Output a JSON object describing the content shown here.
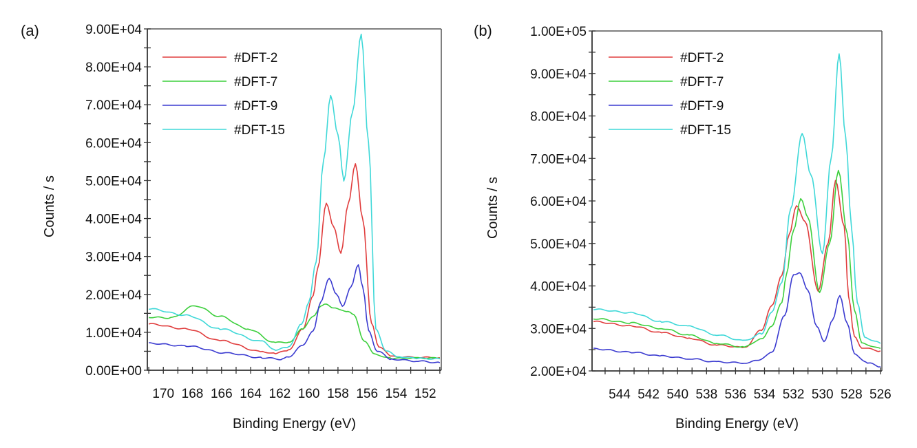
{
  "chart_data": [
    {
      "type": "line",
      "panel_label": "(a)",
      "xlabel": "Binding Energy (eV)",
      "ylabel": "Counts / s",
      "xlim": [
        171.1,
        150.9
      ],
      "x_reversed": true,
      "ylim": [
        0,
        90000
      ],
      "xticks": [
        170,
        168,
        166,
        164,
        162,
        160,
        158,
        156,
        154,
        152
      ],
      "xtick_labels": [
        "170",
        "168",
        "166",
        "164",
        "162",
        "160",
        "158",
        "156",
        "154",
        "152"
      ],
      "x_minor_step": 1,
      "yticks": [
        0,
        10000,
        20000,
        30000,
        40000,
        50000,
        60000,
        70000,
        80000,
        90000
      ],
      "ytick_labels": [
        "0.00E+00",
        "1.00E+04",
        "2.00E+04",
        "3.00E+04",
        "4.00E+04",
        "5.00E+04",
        "6.00E+04",
        "7.00E+04",
        "8.00E+04",
        "9.00E+04"
      ],
      "y_minor_step": 5000,
      "grid": false,
      "legend_position": "top-left",
      "series": [
        {
          "name": "#DFT-2",
          "color": "#e03c3c",
          "x": [
            171.0,
            168.4,
            166.1,
            163.2,
            162.3,
            161.4,
            160.4,
            159.7,
            159.4,
            158.8,
            158.3,
            157.8,
            157.3,
            156.8,
            156.3,
            155.7,
            155.2,
            154.3,
            152.5,
            151.0
          ],
          "y": [
            12200,
            10900,
            7800,
            4900,
            4400,
            5300,
            10900,
            19600,
            26900,
            43900,
            38000,
            30700,
            44000,
            54300,
            40000,
            12300,
            6300,
            3600,
            3400,
            3300
          ]
        },
        {
          "name": "#DFT-7",
          "color": "#3ccf3c",
          "x": [
            171.0,
            169.5,
            167.8,
            166.1,
            164.2,
            162.3,
            161.4,
            160.4,
            159.7,
            159.2,
            158.8,
            158.3,
            157.8,
            157.3,
            156.9,
            156.2,
            155.5,
            154.3,
            152.5,
            151.0
          ],
          "y": [
            14000,
            13800,
            17000,
            14200,
            10900,
            7300,
            7400,
            10900,
            14200,
            16900,
            17400,
            16500,
            15800,
            15600,
            14500,
            7800,
            4200,
            3100,
            3200,
            3200
          ]
        },
        {
          "name": "#DFT-9",
          "color": "#3a3ad0",
          "x": [
            171.0,
            168.4,
            165.6,
            163.2,
            161.8,
            161.4,
            160.4,
            159.7,
            159.2,
            158.6,
            158.1,
            157.7,
            157.1,
            156.6,
            156.3,
            155.9,
            155.3,
            154.3,
            152.5,
            151.0
          ],
          "y": [
            7100,
            6400,
            4500,
            3300,
            2900,
            3600,
            6500,
            10500,
            17800,
            24300,
            20000,
            16900,
            22000,
            27800,
            22000,
            10500,
            5000,
            2900,
            2400,
            2000
          ]
        },
        {
          "name": "#DFT-15",
          "color": "#3fd8d8",
          "x": [
            171.0,
            168.4,
            166.1,
            163.2,
            162.3,
            161.4,
            160.5,
            160.0,
            159.5,
            159.0,
            158.5,
            158.0,
            157.6,
            157.0,
            156.4,
            155.9,
            155.4,
            154.7,
            153.8,
            152.5,
            151.0
          ],
          "y": [
            16200,
            14500,
            10900,
            7600,
            5400,
            6000,
            12300,
            17800,
            28700,
            55000,
            72600,
            62000,
            50000,
            68000,
            88700,
            60000,
            11000,
            5000,
            3600,
            3100,
            3000
          ]
        }
      ]
    },
    {
      "type": "line",
      "panel_label": "(b)",
      "xlabel": "Binding Energy (eV)",
      "ylabel": "Counts / s",
      "xlim": [
        545.9,
        525.9
      ],
      "x_reversed": true,
      "ylim": [
        20000,
        100000
      ],
      "xticks": [
        544,
        542,
        540,
        538,
        536,
        534,
        532,
        530,
        528,
        526
      ],
      "xtick_labels": [
        "544",
        "542",
        "540",
        "538",
        "536",
        "534",
        "532",
        "530",
        "528",
        "526"
      ],
      "x_minor_step": 1,
      "yticks": [
        20000,
        30000,
        40000,
        50000,
        60000,
        70000,
        80000,
        90000,
        100000
      ],
      "ytick_labels": [
        "2.00E+04",
        "3.00E+04",
        "4.00E+04",
        "5.00E+04",
        "6.00E+04",
        "7.00E+04",
        "8.00E+04",
        "9.00E+04",
        "1.00E+05"
      ],
      "y_minor_step": 5000,
      "grid": false,
      "legend_position": "top-left",
      "series": [
        {
          "name": "#DFT-2",
          "color": "#e03c3c",
          "x": [
            545.8,
            543.2,
            541.1,
            539.2,
            537.3,
            535.4,
            534.2,
            533.5,
            532.8,
            532.3,
            531.8,
            531.2,
            530.3,
            529.6,
            529.1,
            528.5,
            528.2,
            527.8,
            527.3,
            526.0
          ],
          "y": [
            31600,
            30600,
            29000,
            27700,
            26100,
            25500,
            29600,
            35300,
            42600,
            52000,
            59000,
            55000,
            38900,
            50000,
            65000,
            53900,
            37700,
            28000,
            25500,
            24700
          ]
        },
        {
          "name": "#DFT-7",
          "color": "#3ccf3c",
          "x": [
            545.8,
            543.2,
            541.1,
            539.2,
            537.3,
            535.4,
            534.2,
            533.5,
            532.8,
            532.5,
            532.0,
            531.5,
            531.0,
            530.2,
            529.5,
            528.9,
            528.3,
            527.8,
            527.3,
            526.0
          ],
          "y": [
            32300,
            31300,
            30000,
            28400,
            26500,
            25600,
            27600,
            30500,
            36100,
            42600,
            53000,
            60600,
            56000,
            38500,
            50000,
            67300,
            52300,
            34500,
            26500,
            25300
          ]
        },
        {
          "name": "#DFT-9",
          "color": "#3a3ad0",
          "x": [
            545.8,
            543.2,
            541.1,
            539.2,
            537.3,
            535.4,
            534.4,
            533.5,
            532.6,
            532.0,
            531.6,
            531.0,
            530.4,
            529.9,
            529.3,
            528.8,
            528.3,
            527.8,
            526.9,
            526.0
          ],
          "y": [
            25200,
            24400,
            23500,
            22900,
            22100,
            21900,
            22400,
            24500,
            33000,
            42700,
            43100,
            39000,
            30500,
            26900,
            32000,
            37700,
            31300,
            24000,
            21900,
            21000
          ]
        },
        {
          "name": "#DFT-15",
          "color": "#3fd8d8",
          "x": [
            545.8,
            543.2,
            541.1,
            539.2,
            537.3,
            535.4,
            534.2,
            533.5,
            532.8,
            532.2,
            531.4,
            530.8,
            530.0,
            529.4,
            528.85,
            528.4,
            528.0,
            527.6,
            527.1,
            526.4,
            526.0
          ],
          "y": [
            34500,
            33700,
            31600,
            30500,
            28500,
            27100,
            28800,
            33700,
            41000,
            58000,
            76000,
            66000,
            47700,
            70000,
            94700,
            75000,
            53900,
            36100,
            28000,
            27000,
            26500
          ]
        }
      ]
    }
  ]
}
